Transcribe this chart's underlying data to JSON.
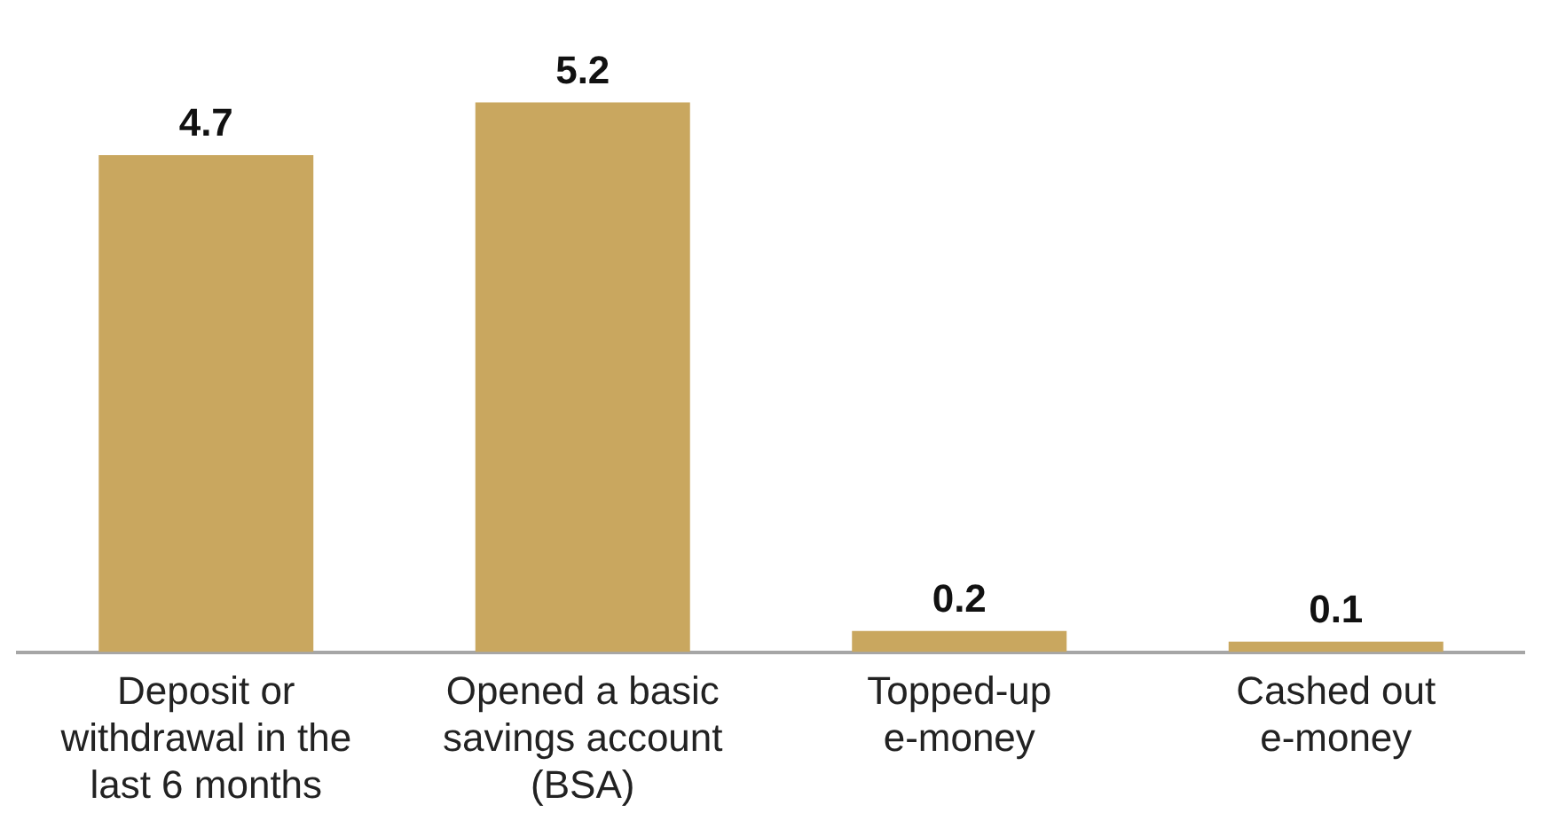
{
  "chart_data": {
    "type": "bar",
    "categories": [
      "Deposit or withdrawal in the last 6 months",
      "Opened a basic savings account (BSA)",
      "Topped-up e-money",
      "Cashed out e-money"
    ],
    "values": [
      4.7,
      5.2,
      0.2,
      0.1
    ],
    "color": "#c9a75f",
    "data_labels": true,
    "grid": false,
    "legend": false
  }
}
